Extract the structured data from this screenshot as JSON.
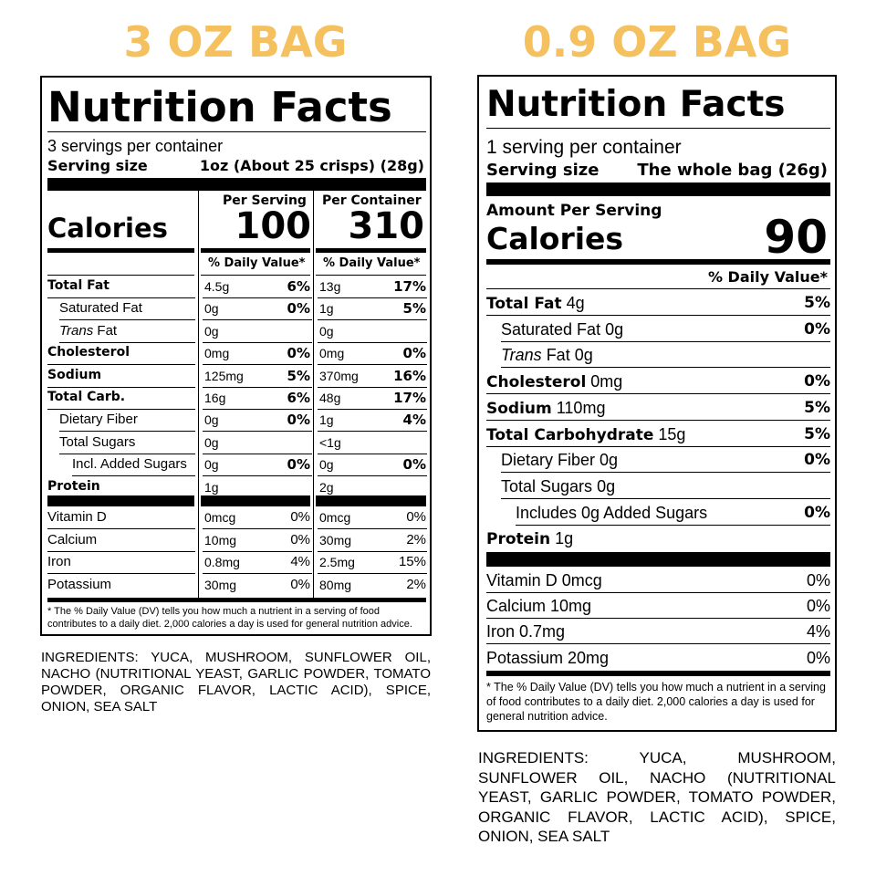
{
  "left": {
    "bag_title": "3 OZ BAG",
    "nf_title": "Nutrition Facts",
    "servings": "3 servings per container",
    "serving_size_label": "Serving size",
    "serving_size_value": "1oz (About 25 crisps) (28g)",
    "per_serving_header": "Per Serving",
    "per_container_header": "Per Container",
    "calories_label": "Calories",
    "calories_per_serving": "100",
    "calories_per_container": "310",
    "dv_header": "% Daily Value*",
    "rows": [
      {
        "name": "Total Fat",
        "bold": true,
        "indent": 0,
        "ps_amt": "4.5g",
        "ps_dv": "6%",
        "pc_amt": "13g",
        "pc_dv": "17%"
      },
      {
        "name": "Saturated Fat",
        "bold": false,
        "indent": 1,
        "ps_amt": "0g",
        "ps_dv": "0%",
        "pc_amt": "1g",
        "pc_dv": "5%"
      },
      {
        "name": "Trans Fat",
        "bold": false,
        "indent": 1,
        "italic_word": "Trans",
        "ps_amt": "0g",
        "ps_dv": "",
        "pc_amt": "0g",
        "pc_dv": ""
      },
      {
        "name": "Cholesterol",
        "bold": true,
        "indent": 0,
        "ps_amt": "0mg",
        "ps_dv": "0%",
        "pc_amt": "0mg",
        "pc_dv": "0%"
      },
      {
        "name": "Sodium",
        "bold": true,
        "indent": 0,
        "ps_amt": "125mg",
        "ps_dv": "5%",
        "pc_amt": "370mg",
        "pc_dv": "16%"
      },
      {
        "name": "Total Carb.",
        "bold": true,
        "indent": 0,
        "ps_amt": "16g",
        "ps_dv": "6%",
        "pc_amt": "48g",
        "pc_dv": "17%"
      },
      {
        "name": "Dietary Fiber",
        "bold": false,
        "indent": 1,
        "ps_amt": "0g",
        "ps_dv": "0%",
        "pc_amt": "1g",
        "pc_dv": "4%"
      },
      {
        "name": "Total Sugars",
        "bold": false,
        "indent": 1,
        "ps_amt": "0g",
        "ps_dv": "",
        "pc_amt": "<1g",
        "pc_dv": ""
      },
      {
        "name": "Incl. Added Sugars",
        "bold": false,
        "indent": 2,
        "ps_amt": "0g",
        "ps_dv": "0%",
        "pc_amt": "0g",
        "pc_dv": "0%"
      },
      {
        "name": "Protein",
        "bold": true,
        "indent": 0,
        "ps_amt": "1g",
        "ps_dv": "",
        "pc_amt": "2g",
        "pc_dv": ""
      }
    ],
    "vitamins": [
      {
        "name": "Vitamin D",
        "ps_amt": "0mcg",
        "ps_dv": "0%",
        "pc_amt": "0mcg",
        "pc_dv": "0%"
      },
      {
        "name": "Calcium",
        "ps_amt": "10mg",
        "ps_dv": "0%",
        "pc_amt": "30mg",
        "pc_dv": "2%"
      },
      {
        "name": "Iron",
        "ps_amt": "0.8mg",
        "ps_dv": "4%",
        "pc_amt": "2.5mg",
        "pc_dv": "15%"
      },
      {
        "name": "Potassium",
        "ps_amt": "30mg",
        "ps_dv": "0%",
        "pc_amt": "80mg",
        "pc_dv": "2%"
      }
    ],
    "footnote": "* The % Daily Value (DV) tells you how much a nutrient in a serving of food contributes to a daily diet. 2,000 calories a day is used for general nutrition advice.",
    "ingredients": "INGREDIENTS: YUCA, MUSHROOM, SUNFLOWER OIL, NACHO (NUTRITIONAL YEAST, GARLIC POWDER, TOMATO POWDER, ORGANIC FLAVOR, LACTIC ACID), SPICE, ONION, SEA SALT"
  },
  "right": {
    "bag_title": "0.9 OZ BAG",
    "nf_title": "Nutrition Facts",
    "servings": "1 serving per container",
    "serving_size_label": "Serving size",
    "serving_size_value": "The whole bag (26g)",
    "amount_per_serving": "Amount Per Serving",
    "calories_label": "Calories",
    "calories_value": "90",
    "dv_header": "% Daily Value*",
    "rows": [
      {
        "name": "Total Fat",
        "amt": "4g",
        "bold": true,
        "indent": 0,
        "dv": "5%"
      },
      {
        "name": "Saturated Fat",
        "amt": "0g",
        "bold": false,
        "indent": 1,
        "dv": "0%"
      },
      {
        "name": "Trans",
        "name_suffix": "Fat",
        "amt": "0g",
        "bold": false,
        "indent": 1,
        "italic": true,
        "dv": ""
      },
      {
        "name": "Cholesterol",
        "amt": "0mg",
        "bold": true,
        "indent": 0,
        "dv": "0%"
      },
      {
        "name": "Sodium",
        "amt": "110mg",
        "bold": true,
        "indent": 0,
        "dv": "5%"
      },
      {
        "name": "Total Carbohydrate",
        "amt": "15g",
        "bold": true,
        "indent": 0,
        "dv": "5%"
      },
      {
        "name": "Dietary Fiber",
        "amt": "0g",
        "bold": false,
        "indent": 1,
        "dv": "0%"
      },
      {
        "name": "Total Sugars",
        "amt": "0g",
        "bold": false,
        "indent": 1,
        "dv": ""
      },
      {
        "name": "Includes 0g Added Sugars",
        "amt": "",
        "bold": false,
        "indent": 2,
        "dv": "0%"
      },
      {
        "name": "Protein",
        "amt": "1g",
        "bold": true,
        "indent": 0,
        "dv": ""
      }
    ],
    "vitamins": [
      {
        "name": "Vitamin D 0mcg",
        "dv": "0%"
      },
      {
        "name": "Calcium 10mg",
        "dv": "0%"
      },
      {
        "name": "Iron 0.7mg",
        "dv": "4%"
      },
      {
        "name": "Potassium 20mg",
        "dv": "0%"
      }
    ],
    "footnote": "* The % Daily Value (DV) tells you how much a nutrient in a serving of food contributes to a daily diet. 2,000 calories a day is used for general nutrition advice.",
    "ingredients": "INGREDIENTS: YUCA, MUSHROOM, SUNFLOWER OIL, NACHO (NUTRITIONAL YEAST, GARLIC POWDER, TOMATO POWDER, ORGANIC FLAVOR, LACTIC ACID), SPICE, ONION, SEA SALT"
  },
  "colors": {
    "title_accent": "#f5c15f",
    "ink": "#000000"
  }
}
